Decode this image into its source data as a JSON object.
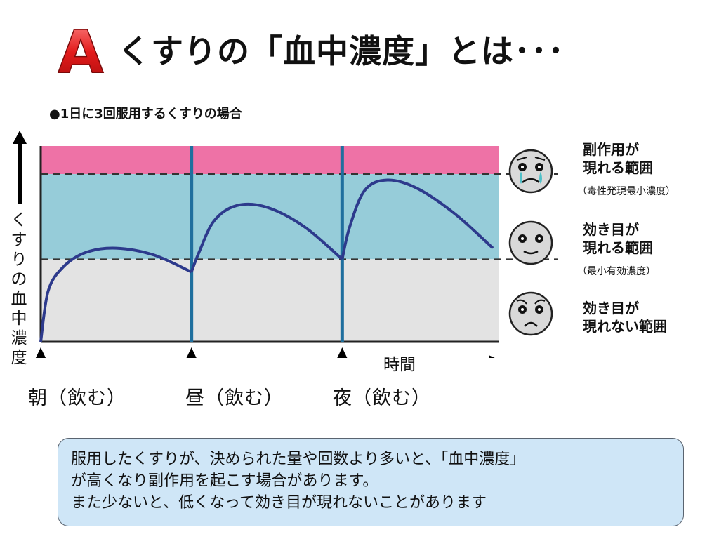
{
  "title": {
    "badge": "A",
    "text": "くすりの「血中濃度」とは･･･"
  },
  "subtitle": "●1日に3回服用するくすりの場合",
  "y_axis_label": [
    "く",
    "す",
    "り",
    "の",
    "血",
    "中",
    "濃",
    "度"
  ],
  "time_label": "時間",
  "doses": [
    {
      "label": "朝（飲む）"
    },
    {
      "label": "昼（飲む）"
    },
    {
      "label": "夜（飲む）"
    }
  ],
  "zones": [
    {
      "label_lines": [
        "副作用が",
        "現れる範囲"
      ],
      "sub": "（毒性発現最小濃度）",
      "face": "crying-face-icon",
      "color": "#ee72a6"
    },
    {
      "label_lines": [
        "効き目が",
        "現れる範囲"
      ],
      "sub": "（最小有効濃度）",
      "face": "smiling-face-icon",
      "color": "#96ccd9"
    },
    {
      "label_lines": [
        "効き目が",
        "現れない範囲"
      ],
      "sub": "",
      "face": "frowning-face-icon",
      "color": "#e3e3e3"
    }
  ],
  "note": {
    "lines": [
      "服用したくすりが、決められた量や回数より多いと、「血中濃度」",
      "が高くなり副作用を起こす場合があります。",
      "また少ないと、低くなって効き目が現れないことがあります"
    ]
  },
  "chart_data": {
    "type": "line",
    "x": [
      0,
      0.05,
      0.15,
      0.3,
      0.5,
      0.75,
      1.0,
      1.05,
      1.15,
      1.3,
      1.5,
      1.75,
      2.0,
      2.05,
      2.15,
      2.3,
      2.5,
      2.75,
      3.0
    ],
    "values": [
      0,
      0.6,
      0.88,
      1.05,
      1.1,
      1.02,
      0.82,
      1.05,
      1.42,
      1.6,
      1.58,
      1.35,
      0.97,
      1.35,
      1.78,
      1.9,
      1.8,
      1.5,
      1.1
    ],
    "ylim": [
      0,
      2.3
    ],
    "thresholds": {
      "min_effective": 0.97,
      "min_toxic": 1.97
    },
    "colors": {
      "line": "#2d3a8c",
      "dose_marker": "#1f6f9e"
    }
  }
}
